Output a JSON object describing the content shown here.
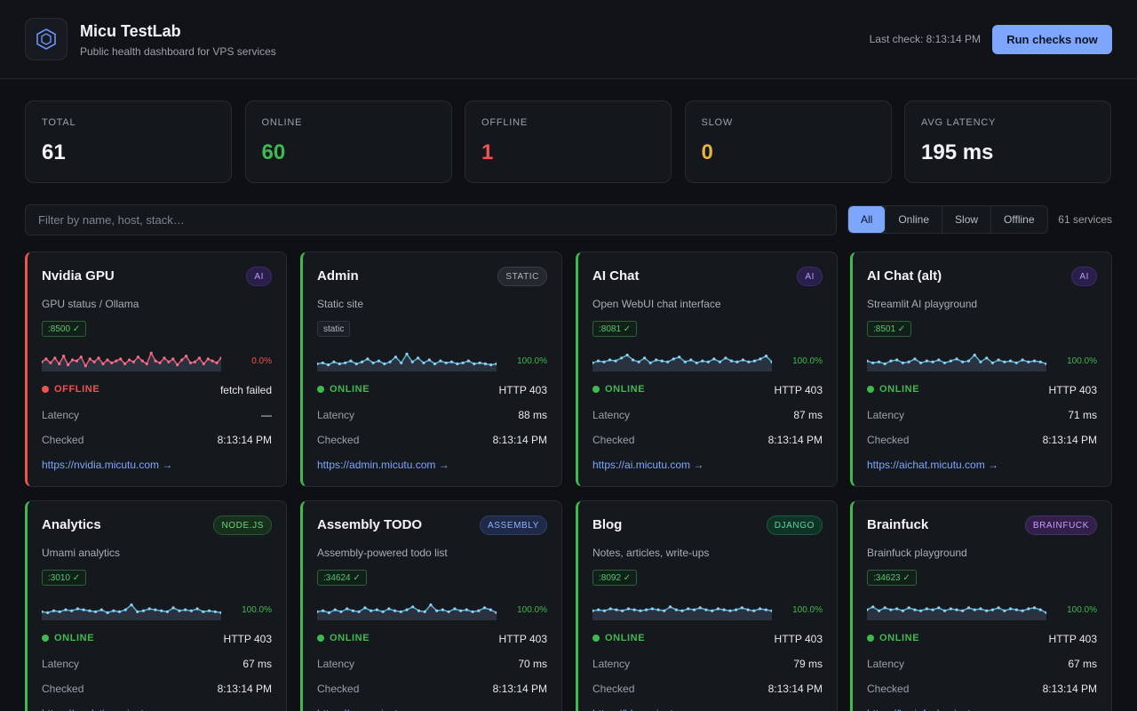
{
  "header": {
    "title": "Micu TestLab",
    "subtitle": "Public health dashboard for VPS services",
    "last_check": "Last check: 8:13:14 PM",
    "run_button": "Run checks now"
  },
  "stats": [
    {
      "label": "TOTAL",
      "value": "61",
      "color": "#f2f4f7"
    },
    {
      "label": "ONLINE",
      "value": "60",
      "color": "#3fb950"
    },
    {
      "label": "OFFLINE",
      "value": "1",
      "color": "#f0524f"
    },
    {
      "label": "SLOW",
      "value": "0",
      "color": "#e3b341"
    },
    {
      "label": "AVG LATENCY",
      "value": "195 ms",
      "color": "#f2f4f7"
    }
  ],
  "filter": {
    "placeholder": "Filter by name, host, stack…",
    "tabs": [
      "All",
      "Online",
      "Slow",
      "Offline"
    ],
    "active_tab": "All",
    "count": "61 services"
  },
  "services": [
    {
      "name": "Nvidia GPU",
      "badge": "AI",
      "badge_style": "ai",
      "desc": "GPU status / Ollama",
      "port": ":8500 ✓",
      "port_plain": false,
      "uptime": "0.0%",
      "status": "OFFLINE",
      "offline": true,
      "code": "fetch failed",
      "latency_label": "Latency",
      "latency": "—",
      "checked_label": "Checked",
      "checked": "8:13:14 PM",
      "link": "https://nvidia.micutu.com →",
      "spark": [
        0.4,
        0.55,
        0.35,
        0.6,
        0.3,
        0.7,
        0.25,
        0.5,
        0.45,
        0.65,
        0.2,
        0.55,
        0.4,
        0.6,
        0.3,
        0.5,
        0.35,
        0.45,
        0.55,
        0.3,
        0.5,
        0.4,
        0.65,
        0.45,
        0.3,
        0.85,
        0.45,
        0.35,
        0.6,
        0.4,
        0.55,
        0.25,
        0.5,
        0.7,
        0.35,
        0.4,
        0.6,
        0.3,
        0.55,
        0.45,
        0.35,
        0.6
      ]
    },
    {
      "name": "Admin",
      "badge": "STATIC",
      "badge_style": "static",
      "desc": "Static site",
      "port": "static",
      "port_plain": true,
      "uptime": "100.0%",
      "status": "ONLINE",
      "offline": false,
      "code": "HTTP 403",
      "latency_label": "Latency",
      "latency": "88 ms",
      "checked_label": "Checked",
      "checked": "8:13:14 PM",
      "link": "https://admin.micutu.com →",
      "spark": [
        0.3,
        0.35,
        0.25,
        0.4,
        0.3,
        0.35,
        0.45,
        0.3,
        0.4,
        0.55,
        0.35,
        0.45,
        0.3,
        0.4,
        0.65,
        0.35,
        0.8,
        0.4,
        0.6,
        0.35,
        0.5,
        0.3,
        0.45,
        0.35,
        0.4,
        0.3,
        0.35,
        0.45,
        0.3,
        0.35,
        0.3,
        0.25,
        0.3
      ]
    },
    {
      "name": "AI Chat",
      "badge": "AI",
      "badge_style": "ai",
      "desc": "Open WebUI chat interface",
      "port": ":8081 ✓",
      "port_plain": false,
      "uptime": "100.0%",
      "status": "ONLINE",
      "offline": false,
      "code": "HTTP 403",
      "latency_label": "Latency",
      "latency": "87 ms",
      "checked_label": "Checked",
      "checked": "8:13:14 PM",
      "link": "https://ai.micutu.com →",
      "spark": [
        0.35,
        0.45,
        0.4,
        0.5,
        0.45,
        0.6,
        0.75,
        0.5,
        0.4,
        0.6,
        0.35,
        0.5,
        0.45,
        0.4,
        0.55,
        0.65,
        0.4,
        0.5,
        0.35,
        0.45,
        0.4,
        0.55,
        0.4,
        0.6,
        0.45,
        0.4,
        0.5,
        0.4,
        0.45,
        0.55,
        0.7,
        0.4
      ]
    },
    {
      "name": "AI Chat (alt)",
      "badge": "AI",
      "badge_style": "ai",
      "desc": "Streamlit AI playground",
      "port": ":8501 ✓",
      "port_plain": false,
      "uptime": "100.0%",
      "status": "ONLINE",
      "offline": false,
      "code": "HTTP 403",
      "latency_label": "Latency",
      "latency": "71 ms",
      "checked_label": "Checked",
      "checked": "8:13:14 PM",
      "link": "https://aichat.micutu.com →",
      "spark": [
        0.45,
        0.35,
        0.4,
        0.3,
        0.45,
        0.5,
        0.35,
        0.4,
        0.55,
        0.35,
        0.45,
        0.4,
        0.5,
        0.35,
        0.45,
        0.55,
        0.4,
        0.45,
        0.75,
        0.4,
        0.6,
        0.35,
        0.5,
        0.4,
        0.45,
        0.35,
        0.5,
        0.4,
        0.45,
        0.4,
        0.3
      ]
    },
    {
      "name": "Analytics",
      "badge": "NODE.JS",
      "badge_style": "node",
      "desc": "Umami analytics",
      "port": ":3010 ✓",
      "port_plain": false,
      "uptime": "100.0%",
      "status": "ONLINE",
      "offline": false,
      "code": "HTTP 403",
      "latency_label": "Latency",
      "latency": "67 ms",
      "checked_label": "Checked",
      "checked": "8:13:14 PM",
      "link": "https://analytics.micutu.com →",
      "spark": [
        0.35,
        0.3,
        0.4,
        0.35,
        0.45,
        0.4,
        0.5,
        0.45,
        0.4,
        0.35,
        0.45,
        0.3,
        0.4,
        0.35,
        0.45,
        0.7,
        0.35,
        0.4,
        0.5,
        0.45,
        0.4,
        0.35,
        0.55,
        0.4,
        0.45,
        0.4,
        0.5,
        0.35,
        0.4,
        0.35,
        0.3
      ]
    },
    {
      "name": "Assembly TODO",
      "badge": "ASSEMBLY",
      "badge_style": "asm",
      "desc": "Assembly-powered todo list",
      "port": ":34624 ✓",
      "port_plain": false,
      "uptime": "100.0%",
      "status": "ONLINE",
      "offline": false,
      "code": "HTTP 403",
      "latency_label": "Latency",
      "latency": "70 ms",
      "checked_label": "Checked",
      "checked": "8:13:14 PM",
      "link": "https://asm.micutu.com →",
      "spark": [
        0.35,
        0.4,
        0.3,
        0.45,
        0.35,
        0.5,
        0.4,
        0.35,
        0.55,
        0.4,
        0.45,
        0.35,
        0.5,
        0.4,
        0.35,
        0.45,
        0.6,
        0.4,
        0.35,
        0.7,
        0.4,
        0.45,
        0.35,
        0.5,
        0.4,
        0.45,
        0.35,
        0.4,
        0.55,
        0.45,
        0.3
      ]
    },
    {
      "name": "Blog",
      "badge": "DJANGO",
      "badge_style": "django",
      "desc": "Notes, articles, write-ups",
      "port": ":8092 ✓",
      "port_plain": false,
      "uptime": "100.0%",
      "status": "ONLINE",
      "offline": false,
      "code": "HTTP 403",
      "latency_label": "Latency",
      "latency": "79 ms",
      "checked_label": "Checked",
      "checked": "8:13:14 PM",
      "link": "https://blog.micutu.com →",
      "spark": [
        0.4,
        0.45,
        0.4,
        0.5,
        0.45,
        0.4,
        0.5,
        0.45,
        0.4,
        0.45,
        0.5,
        0.45,
        0.4,
        0.6,
        0.45,
        0.4,
        0.5,
        0.45,
        0.55,
        0.45,
        0.4,
        0.5,
        0.45,
        0.4,
        0.45,
        0.55,
        0.45,
        0.4,
        0.5,
        0.45,
        0.4
      ]
    },
    {
      "name": "Brainfuck",
      "badge": "BRAINFUCK",
      "badge_style": "bf",
      "desc": "Brainfuck playground",
      "port": ":34623 ✓",
      "port_plain": false,
      "uptime": "100.0%",
      "status": "ONLINE",
      "offline": false,
      "code": "HTTP 403",
      "latency_label": "Latency",
      "latency": "67 ms",
      "checked_label": "Checked",
      "checked": "8:13:14 PM",
      "link": "https://brainfuck.micutu.com →",
      "spark": [
        0.45,
        0.6,
        0.4,
        0.55,
        0.45,
        0.5,
        0.4,
        0.55,
        0.45,
        0.4,
        0.5,
        0.45,
        0.55,
        0.4,
        0.5,
        0.45,
        0.4,
        0.55,
        0.45,
        0.5,
        0.4,
        0.45,
        0.55,
        0.4,
        0.5,
        0.45,
        0.4,
        0.5,
        0.55,
        0.45,
        0.3
      ]
    }
  ]
}
